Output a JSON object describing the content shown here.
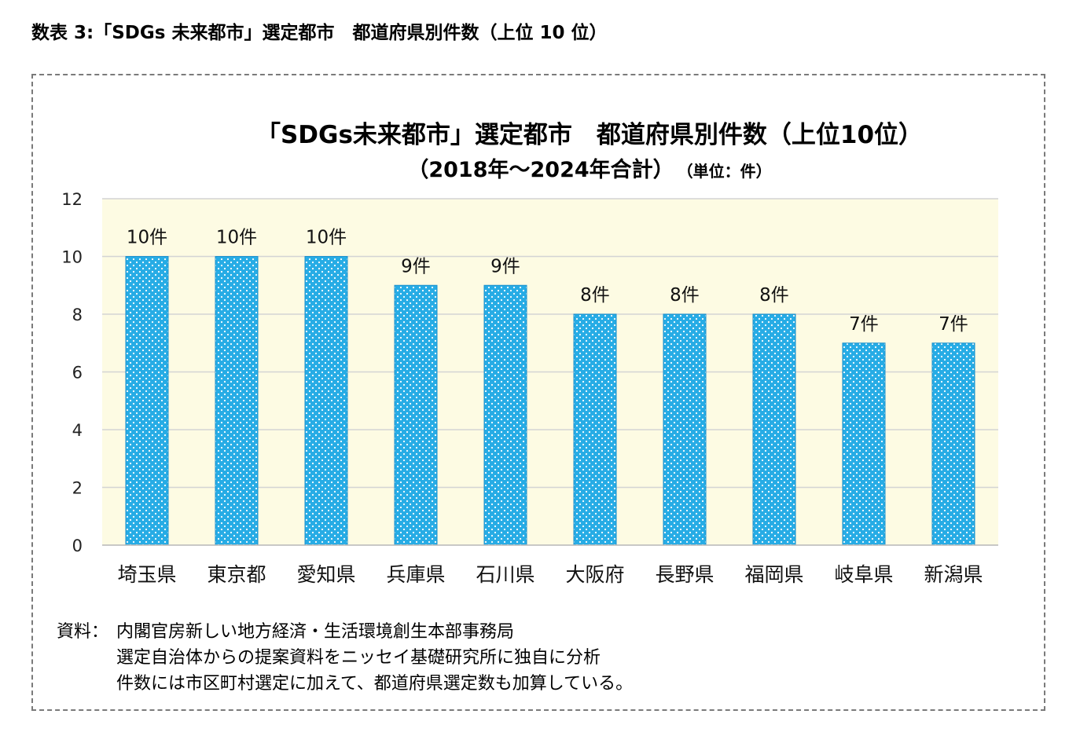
{
  "caption": "数表 3:「SDGs 未来都市」選定都市　都道府県別件数（上位 10 位）",
  "chart_data": {
    "type": "bar",
    "title": "「SDGs未来都市」選定都市　都道府県別件数（上位10位）",
    "subtitle": "（2018年～2024年合計）",
    "unit_label": "（単位：件）",
    "categories": [
      "埼玉県",
      "東京都",
      "愛知県",
      "兵庫県",
      "石川県",
      "大阪府",
      "長野県",
      "福岡県",
      "岐阜県",
      "新潟県"
    ],
    "values": [
      10,
      10,
      10,
      9,
      9,
      8,
      8,
      8,
      7,
      7
    ],
    "data_labels": [
      "10件",
      "10件",
      "10件",
      "9件",
      "9件",
      "8件",
      "8件",
      "8件",
      "7件",
      "7件"
    ],
    "ylim": [
      0,
      12
    ],
    "yticks": [
      0,
      2,
      4,
      6,
      8,
      10,
      12
    ],
    "grid": true,
    "legend": "none",
    "bar_color": "#27ace5",
    "plot_background": "#fdfbe3"
  },
  "notes": {
    "label": "資料：",
    "lines": [
      "内閣官房新しい地方経済・生活環境創生本部事務局",
      "選定自治体からの提案資料をニッセイ基礎研究所に独自に分析",
      "件数には市区町村選定に加えて、都道府県選定数も加算している。"
    ]
  }
}
